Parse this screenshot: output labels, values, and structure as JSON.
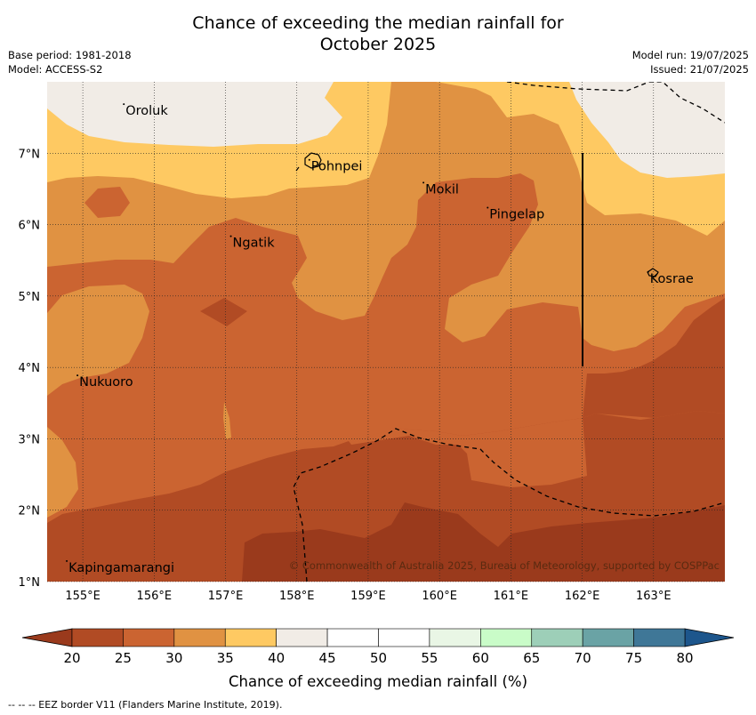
{
  "title_line1": "Chance of exceeding the median rainfall for",
  "title_line2": "October 2025",
  "base_period": "Base period: 1981-2018",
  "model": "Model: ACCESS-S2",
  "model_run": "Model run: 19/07/2025",
  "issued": "Issued: 21/07/2025",
  "copyright": "© Commonwealth of Australia 2025, Bureau of Meteorology, supported by COSPPac",
  "footnote": "--  --  -- EEZ border V11 (Flanders Marine Institute, 2019).",
  "map": {
    "lon_range": [
      154.5,
      164.0
    ],
    "lat_range": [
      1.0,
      8.0
    ],
    "lon_ticks": [
      "155°E",
      "156°E",
      "157°E",
      "158°E",
      "159°E",
      "160°E",
      "161°E",
      "162°E",
      "163°E"
    ],
    "lat_ticks": [
      "1°N",
      "2°N",
      "3°N",
      "4°N",
      "5°N",
      "6°N",
      "7°N"
    ],
    "grid": true,
    "places": [
      {
        "name": "Oroluk",
        "lon": 155.6,
        "lat": 7.65
      },
      {
        "name": "Pohnpei",
        "lon": 158.2,
        "lat": 6.87
      },
      {
        "name": "Mokil",
        "lon": 159.8,
        "lat": 6.55
      },
      {
        "name": "Pingelap",
        "lon": 160.7,
        "lat": 6.2
      },
      {
        "name": "Ngatik",
        "lon": 157.1,
        "lat": 5.8
      },
      {
        "name": "Kosrae",
        "lon": 162.95,
        "lat": 5.3
      },
      {
        "name": "Nukuoro",
        "lon": 154.95,
        "lat": 3.85
      },
      {
        "name": "Kapingamarangi",
        "lon": 154.8,
        "lat": 1.25
      }
    ]
  },
  "colorbar": {
    "label": "Chance of exceeding median rainfall (%)",
    "ticks": [
      "20",
      "25",
      "30",
      "35",
      "40",
      "45",
      "50",
      "55",
      "60",
      "65",
      "70",
      "75",
      "80"
    ],
    "colors": [
      "#b14b24",
      "#cb6431",
      "#e09242",
      "#fec962",
      "#f1ece6",
      "#ffffff",
      "#ffffff",
      "#e9f6e5",
      "#c9fcc8",
      "#9dcfb8",
      "#6aa3a5",
      "#3f7797"
    ],
    "under_color": "#9a3a1c",
    "over_color": "#1d568c"
  }
}
